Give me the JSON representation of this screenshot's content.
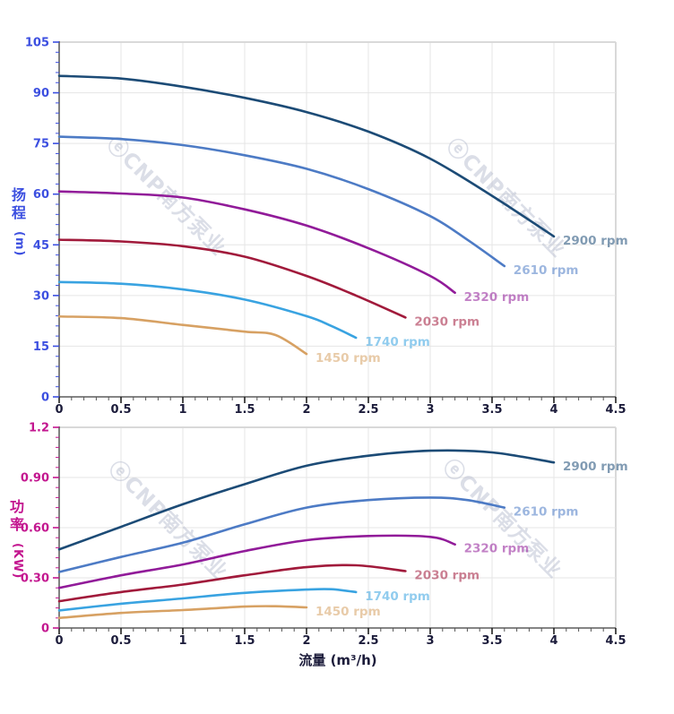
{
  "watermark": {
    "text": "ⓔCNP南方泵业",
    "color": "#aab2c8"
  },
  "colors": {
    "grid": "#e5e5e5",
    "plot_border": "#d9d9d9",
    "spine": "#3c3c3c",
    "x_tick_text": "#1b1b3a",
    "head_axis_accent": "#3c4fe0",
    "power_axis_accent": "#c3168f"
  },
  "chart_data": [
    {
      "type": "line",
      "title": "",
      "ylabel": "扬程 (m)",
      "ylabel_chars": [
        "扬",
        "程"
      ],
      "ylabel_unit": "(m)",
      "xlabel": "",
      "xlim": [
        0,
        4.5
      ],
      "ylim": [
        0,
        105
      ],
      "x_major": [
        0,
        0.5,
        1,
        1.5,
        2,
        2.5,
        3,
        3.5,
        4,
        4.5
      ],
      "x_tick_labels": [
        "0",
        "0.5",
        "1",
        "1.5",
        "2",
        "2.5",
        "3",
        "3.5",
        "4",
        "4.5"
      ],
      "x_minor_step": 0.1,
      "y_major": [
        0,
        15,
        30,
        45,
        60,
        75,
        90,
        105
      ],
      "y_tick_labels": [
        "0",
        "15",
        "30",
        "45",
        "60",
        "75",
        "90",
        "105"
      ],
      "y_minor_step": 3,
      "grid": true,
      "legend_position": "curve-ends",
      "axis_accent": "#3c4fe0",
      "series": [
        {
          "name": "2900 rpm",
          "color": "#1c4b76",
          "points": [
            [
              0,
              95
            ],
            [
              0.5,
              94.2
            ],
            [
              1,
              91.8
            ],
            [
              1.5,
              88.5
            ],
            [
              2,
              84.3
            ],
            [
              2.5,
              78.5
            ],
            [
              3,
              70.5
            ],
            [
              3.5,
              59.5
            ],
            [
              4,
              47.5
            ]
          ]
        },
        {
          "name": "2610 rpm",
          "color": "#4d7bc5",
          "points": [
            [
              0,
              77
            ],
            [
              0.5,
              76.3
            ],
            [
              1,
              74.5
            ],
            [
              1.5,
              71.5
            ],
            [
              2,
              67.5
            ],
            [
              2.5,
              61.5
            ],
            [
              3,
              53.5
            ],
            [
              3.3,
              46.5
            ],
            [
              3.6,
              38.7
            ]
          ]
        },
        {
          "name": "2320 rpm",
          "color": "#911b99",
          "points": [
            [
              0,
              60.8
            ],
            [
              0.5,
              60.2
            ],
            [
              1,
              59
            ],
            [
              1.5,
              55.5
            ],
            [
              2,
              50.7
            ],
            [
              2.5,
              44
            ],
            [
              3,
              35.8
            ],
            [
              3.2,
              30.8
            ]
          ]
        },
        {
          "name": "2030 rpm",
          "color": "#a11a3b",
          "points": [
            [
              0,
              46.5
            ],
            [
              0.5,
              46
            ],
            [
              1,
              44.6
            ],
            [
              1.5,
              41.5
            ],
            [
              2,
              35.8
            ],
            [
              2.4,
              30
            ],
            [
              2.8,
              23.5
            ]
          ]
        },
        {
          "name": "1740 rpm",
          "color": "#39a3e1",
          "points": [
            [
              0,
              34
            ],
            [
              0.5,
              33.5
            ],
            [
              1,
              31.8
            ],
            [
              1.5,
              28.8
            ],
            [
              2,
              23.9
            ],
            [
              2.2,
              21
            ],
            [
              2.4,
              17.5
            ]
          ]
        },
        {
          "name": "1450 rpm",
          "color": "#d7a163",
          "points": [
            [
              0,
              23.8
            ],
            [
              0.5,
              23.3
            ],
            [
              1,
              21.3
            ],
            [
              1.5,
              19.3
            ],
            [
              1.75,
              18.3
            ],
            [
              2,
              12.7
            ]
          ]
        }
      ]
    },
    {
      "type": "line",
      "title": "",
      "ylabel": "功率 (KW)",
      "ylabel_chars": [
        "功",
        "率"
      ],
      "ylabel_unit": "(KW)",
      "xlabel": "流量 (m³/h)",
      "xlim": [
        0,
        4.5
      ],
      "ylim": [
        0,
        1.2
      ],
      "x_major": [
        0,
        0.5,
        1,
        1.5,
        2,
        2.5,
        3,
        3.5,
        4,
        4.5
      ],
      "x_tick_labels": [
        "0",
        "0.5",
        "1",
        "1.5",
        "2",
        "2.5",
        "3",
        "3.5",
        "4",
        "4.5"
      ],
      "x_minor_step": 0.1,
      "y_major": [
        0,
        0.3,
        0.6,
        0.9,
        1.2
      ],
      "y_tick_labels": [
        "0",
        "0.30",
        "0.60",
        "0.90",
        "1.2"
      ],
      "y_minor_step": 0.06,
      "grid": true,
      "legend_position": "curve-ends",
      "axis_accent": "#c3168f",
      "series": [
        {
          "name": "2900 rpm",
          "color": "#1c4b76",
          "points": [
            [
              0,
              0.47
            ],
            [
              0.5,
              0.605
            ],
            [
              1,
              0.74
            ],
            [
              1.5,
              0.86
            ],
            [
              2,
              0.97
            ],
            [
              2.5,
              1.03
            ],
            [
              3,
              1.06
            ],
            [
              3.5,
              1.05
            ],
            [
              4,
              0.99
            ]
          ]
        },
        {
          "name": "2610 rpm",
          "color": "#4d7bc5",
          "points": [
            [
              0,
              0.335
            ],
            [
              0.5,
              0.425
            ],
            [
              1,
              0.51
            ],
            [
              1.5,
              0.62
            ],
            [
              2,
              0.72
            ],
            [
              2.5,
              0.765
            ],
            [
              3,
              0.78
            ],
            [
              3.3,
              0.765
            ],
            [
              3.6,
              0.72
            ]
          ]
        },
        {
          "name": "2320 rpm",
          "color": "#911b99",
          "points": [
            [
              0,
              0.24
            ],
            [
              0.5,
              0.315
            ],
            [
              1,
              0.38
            ],
            [
              1.5,
              0.46
            ],
            [
              2,
              0.525
            ],
            [
              2.5,
              0.55
            ],
            [
              3,
              0.545
            ],
            [
              3.2,
              0.5
            ]
          ]
        },
        {
          "name": "2030 rpm",
          "color": "#a11a3b",
          "points": [
            [
              0,
              0.16
            ],
            [
              0.5,
              0.215
            ],
            [
              1,
              0.26
            ],
            [
              1.5,
              0.315
            ],
            [
              2,
              0.364
            ],
            [
              2.4,
              0.375
            ],
            [
              2.8,
              0.34
            ]
          ]
        },
        {
          "name": "1740 rpm",
          "color": "#39a3e1",
          "points": [
            [
              0,
              0.105
            ],
            [
              0.5,
              0.145
            ],
            [
              1,
              0.177
            ],
            [
              1.5,
              0.21
            ],
            [
              2,
              0.23
            ],
            [
              2.2,
              0.232
            ],
            [
              2.4,
              0.215
            ]
          ]
        },
        {
          "name": "1450 rpm",
          "color": "#d7a163",
          "points": [
            [
              0,
              0.06
            ],
            [
              0.5,
              0.09
            ],
            [
              1,
              0.107
            ],
            [
              1.5,
              0.128
            ],
            [
              1.75,
              0.13
            ],
            [
              2,
              0.123
            ]
          ]
        }
      ]
    }
  ]
}
